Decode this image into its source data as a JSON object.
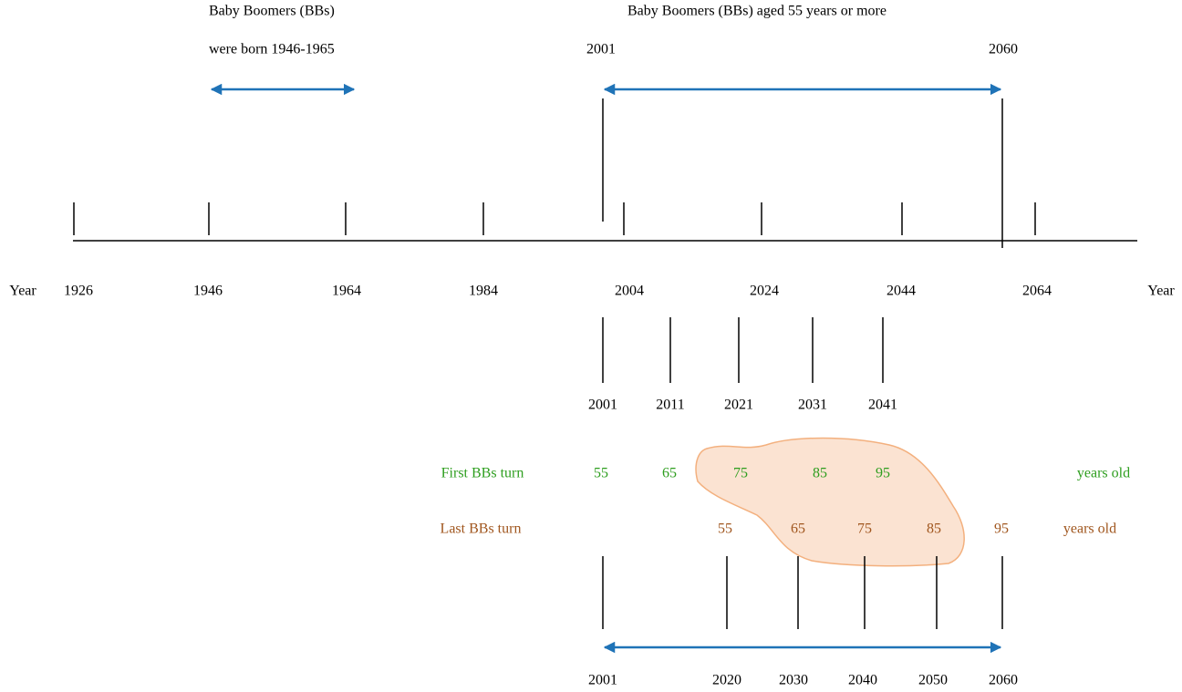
{
  "header": {
    "born_title": "Baby Boomers (BBs)",
    "born_range": "were born 1946-1965",
    "aged_title": "Baby Boomers (BBs) aged 55 years or more",
    "aged_start": "2001",
    "aged_end": "2060"
  },
  "axis": {
    "left_label": "Year",
    "right_label": "Year",
    "years": [
      "1926",
      "1946",
      "1964",
      "1984",
      "2004",
      "2024",
      "2044",
      "2064"
    ]
  },
  "milestones": [
    "2001",
    "2011",
    "2021",
    "2031",
    "2041"
  ],
  "first_row": {
    "label": "First BBs turn",
    "ages": [
      "55",
      "65",
      "75",
      "85",
      "95"
    ],
    "suffix": "years old"
  },
  "last_row": {
    "label": "Last BBs turn",
    "ages": [
      "55",
      "65",
      "75",
      "85",
      "95"
    ],
    "suffix": "years old"
  },
  "bottom_years": [
    "2001",
    "2020",
    "2030",
    "2040",
    "2050",
    "2060"
  ]
}
